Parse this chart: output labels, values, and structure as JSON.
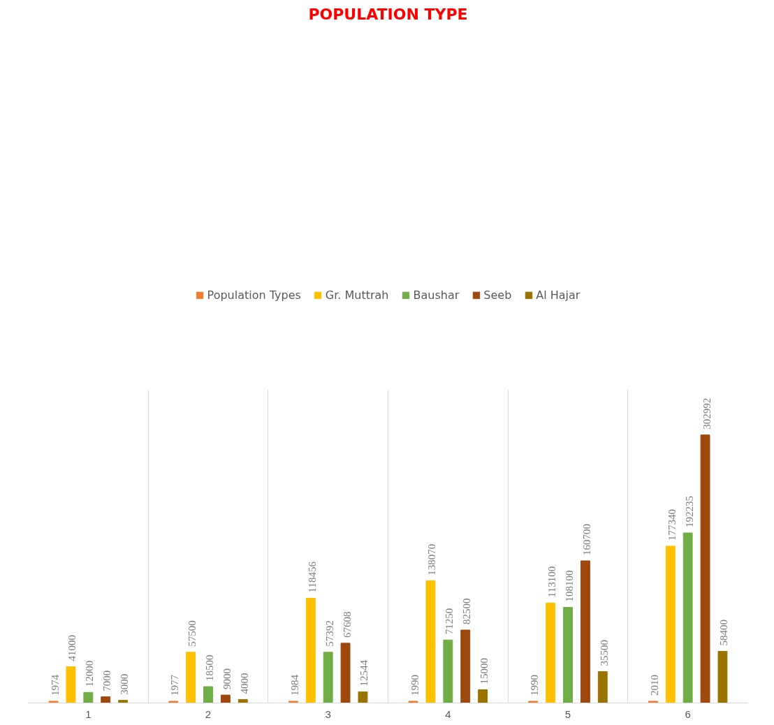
{
  "chart_data": {
    "type": "bar",
    "title": "POPULATION TYPE",
    "categories": [
      "1",
      "2",
      "3",
      "4",
      "5",
      "6"
    ],
    "series": [
      {
        "name": "Population Types",
        "color": "#ed7d31",
        "values": [
          1974,
          1977,
          1984,
          1990,
          1990,
          2010
        ]
      },
      {
        "name": "Gr. Muttrah",
        "color": "#ffc000",
        "values": [
          41000,
          57500,
          118456,
          138070,
          113100,
          177340
        ]
      },
      {
        "name": "Baushar",
        "color": "#70ad47",
        "values": [
          12000,
          18500,
          57392,
          71250,
          108100,
          192235
        ]
      },
      {
        "name": "Seeb",
        "color": "#9e480e",
        "values": [
          7000,
          9000,
          67608,
          82500,
          160700,
          302992
        ]
      },
      {
        "name": "Al Hajar",
        "color": "#997300",
        "values": [
          3000,
          4000,
          12544,
          15000,
          35500,
          58400
        ]
      }
    ],
    "data_labels": true,
    "grid": "x",
    "legend": "top",
    "tick_labels": "x"
  }
}
